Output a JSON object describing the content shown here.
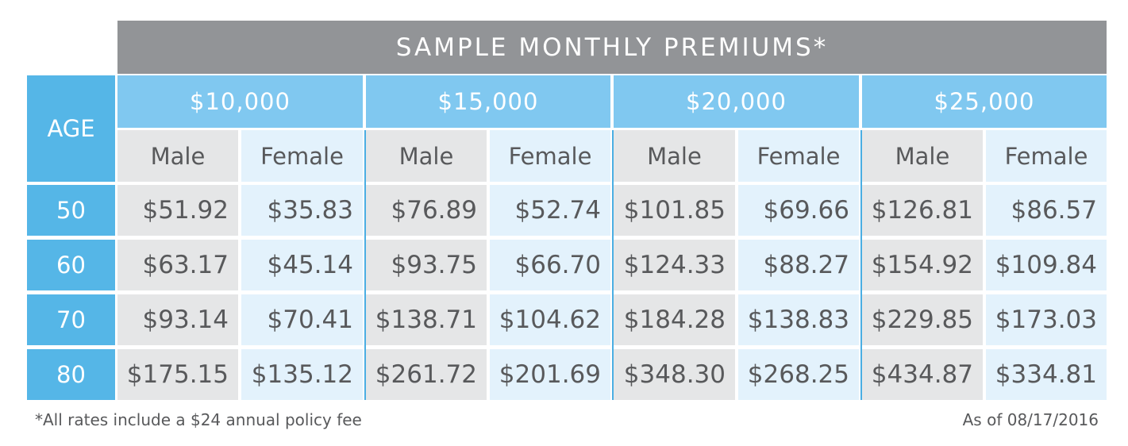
{
  "chart_data": {
    "type": "table",
    "title": "SAMPLE MONTHLY PREMIUMS*",
    "row_header": "AGE",
    "coverage_amounts": [
      "$10,000",
      "$15,000",
      "$20,000",
      "$25,000"
    ],
    "genders": [
      "Male",
      "Female"
    ],
    "ages": [
      "50",
      "60",
      "70",
      "80"
    ],
    "rows": [
      [
        "$51.92",
        "$35.83",
        "$76.89",
        "$52.74",
        "$101.85",
        "$69.66",
        "$126.81",
        "$86.57"
      ],
      [
        "$63.17",
        "$45.14",
        "$93.75",
        "$66.70",
        "$124.33",
        "$88.27",
        "$154.92",
        "$109.84"
      ],
      [
        "$93.14",
        "$70.41",
        "$138.71",
        "$104.62",
        "$184.28",
        "$138.83",
        "$229.85",
        "$173.03"
      ],
      [
        "$175.15",
        "$135.12",
        "$261.72",
        "$201.69",
        "$348.30",
        "$268.25",
        "$434.87",
        "$334.81"
      ]
    ],
    "footnote": "*All rates include a $24 annual policy fee",
    "date": "As of 08/17/2016",
    "colors": {
      "title_bg": "#929497",
      "age_bg": "#55b6e7",
      "amount_bg": "#80c8f0",
      "male_bg": "#e5e6e7",
      "female_bg": "#e3f2fc",
      "text": "#58595b",
      "divider": "#4aaee3"
    }
  }
}
